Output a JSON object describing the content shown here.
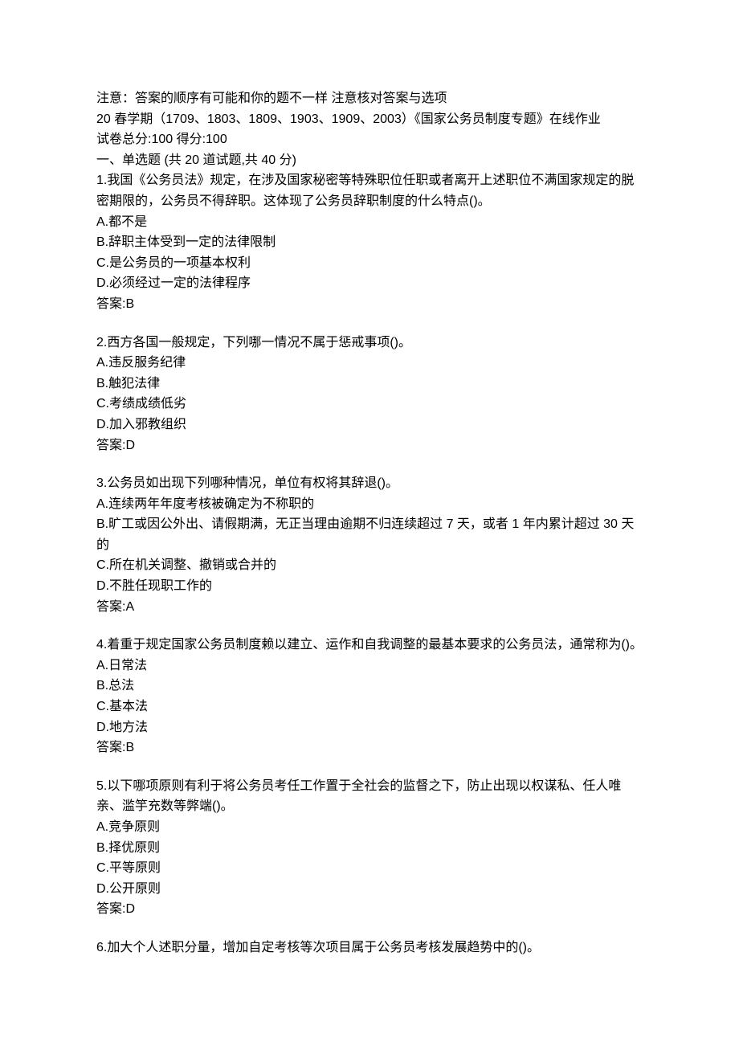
{
  "notice": "注意：答案的顺序有可能和你的题不一样 注意核对答案与选项",
  "title": "20 春学期（1709、1803、1809、1903、1909、2003）《国家公务员制度专题》在线作业",
  "score_line": "试卷总分:100   得分:100",
  "section_heading": "一、单选题 (共 20 道试题,共 40 分)",
  "answer_prefix": "答案:",
  "questions": [
    {
      "num": "1.",
      "stem": "我国《公务员法》规定，在涉及国家秘密等特殊职位任职或者离开上述职位不满国家规定的脱密期限的，公务员不得辞职。这体现了公务员辞职制度的什么特点()。",
      "options": [
        "A.都不是",
        "B.辞职主体受到一定的法律限制",
        "C.是公务员的一项基本权利",
        "D.必须经过一定的法律程序"
      ],
      "answer": "B"
    },
    {
      "num": "2.",
      "stem": "西方各国一般规定，下列哪一情况不属于惩戒事项()。",
      "options": [
        "A.违反服务纪律",
        "B.触犯法律",
        "C.考绩成绩低劣",
        "D.加入邪教组织"
      ],
      "answer": "D"
    },
    {
      "num": "3.",
      "stem": "公务员如出现下列哪种情况，单位有权将其辞退()。",
      "options": [
        "A.连续两年年度考核被确定为不称职的",
        "B.旷工或因公外出、请假期满，无正当理由逾期不归连续超过 7 天，或者 1 年内累计超过 30 天的",
        "C.所在机关调整、撤销或合并的",
        "D.不胜任现职工作的"
      ],
      "answer": "A"
    },
    {
      "num": "4.",
      "stem": "着重于规定国家公务员制度赖以建立、运作和自我调整的最基本要求的公务员法，通常称为()。",
      "options": [
        "A.日常法",
        "B.总法",
        "C.基本法",
        "D.地方法"
      ],
      "answer": "B"
    },
    {
      "num": "5.",
      "stem": "以下哪项原则有利于将公务员考任工作置于全社会的监督之下，防止出现以权谋私、任人唯亲、滥竽充数等弊端()。",
      "options": [
        "A.竞争原则",
        "B.择优原则",
        "C.平等原则",
        "D.公开原则"
      ],
      "answer": "D"
    },
    {
      "num": "6.",
      "stem": "加大个人述职分量，增加自定考核等次项目属于公务员考核发展趋势中的()。",
      "options": [],
      "answer": null
    }
  ]
}
